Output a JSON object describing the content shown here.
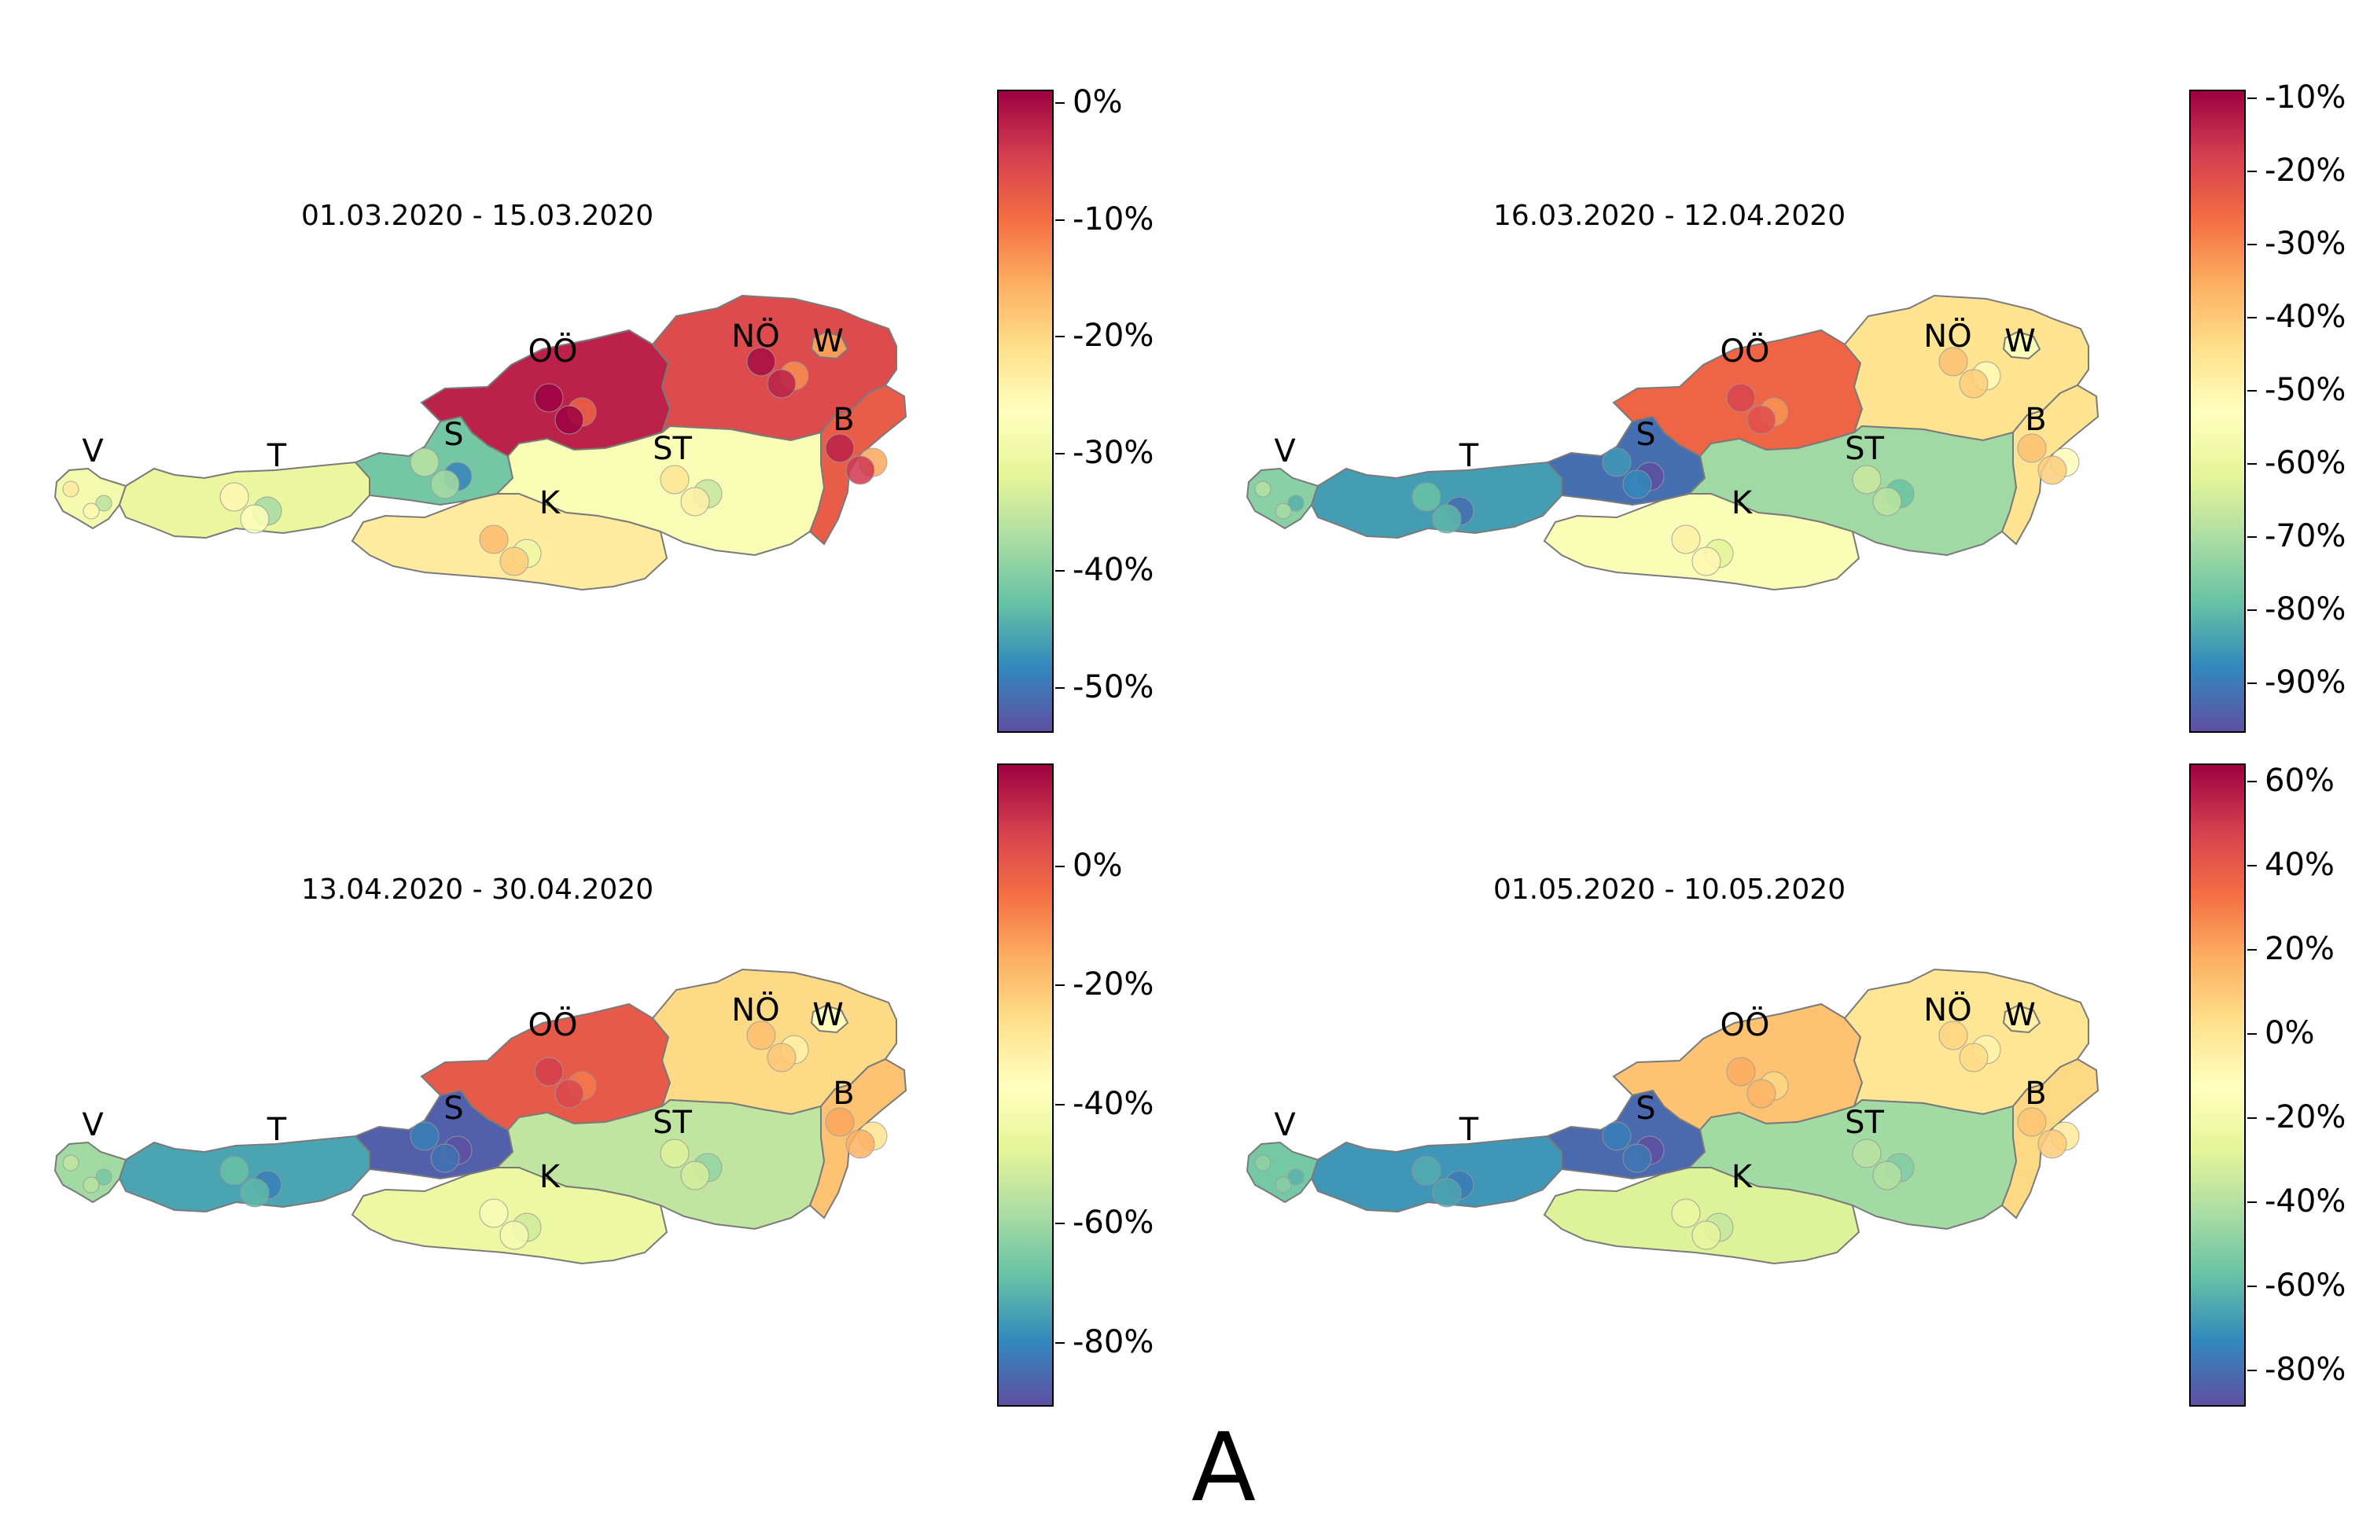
{
  "figure_label": "A",
  "colormap": {
    "name": "Spectral",
    "stops": [
      "#5e4fa2",
      "#3288bd",
      "#66c2a5",
      "#abdda4",
      "#e6f598",
      "#ffffbf",
      "#fee08b",
      "#fdae61",
      "#f46d43",
      "#d53e4f",
      "#9e0142"
    ]
  },
  "state_labels": [
    "V",
    "T",
    "S",
    "OÖ",
    "NÖ",
    "W",
    "B",
    "ST",
    "K"
  ],
  "panels": [
    {
      "title": "01.03.2020 - 15.03.2020",
      "colorbar_range": [
        -54,
        1
      ],
      "colorbar_ticks": [
        "0%",
        "-10%",
        "-20%",
        "-30%",
        "-40%",
        "-50%"
      ],
      "colorbar_tick_values": [
        0,
        -10,
        -20,
        -30,
        -40,
        -50
      ],
      "state_values": {
        "V": -29,
        "T": -31,
        "S": -42,
        "OÖ": -2,
        "NÖ": -6,
        "W": -14,
        "B": -8,
        "ST": -28,
        "K": -23
      }
    },
    {
      "title": "16.03.2020 - 12.04.2020",
      "colorbar_range": [
        -97,
        -9
      ],
      "colorbar_ticks": [
        "-10%",
        "-20%",
        "-30%",
        "-40%",
        "-50%",
        "-60%",
        "-70%",
        "-80%",
        "-90%"
      ],
      "colorbar_tick_values": [
        -10,
        -20,
        -30,
        -40,
        -50,
        -60,
        -70,
        -80,
        -90
      ],
      "state_values": {
        "V": -75,
        "T": -85,
        "S": -92,
        "OÖ": -25,
        "NÖ": -45,
        "W": -55,
        "B": -45,
        "ST": -72,
        "K": -55
      }
    },
    {
      "title": "13.04.2020 - 30.04.2020",
      "colorbar_range": [
        -91,
        17
      ],
      "colorbar_ticks": [
        "0%",
        "-20%",
        "-40%",
        "-60%",
        "-80%"
      ],
      "colorbar_tick_values": [
        0,
        -20,
        -40,
        -60,
        -80
      ],
      "state_values": {
        "V": -60,
        "T": -75,
        "S": -88,
        "OÖ": 0,
        "NÖ": -25,
        "W": -38,
        "B": -20,
        "ST": -55,
        "K": -45
      }
    },
    {
      "title": "01.05.2020 - 10.05.2020",
      "colorbar_range": [
        -89,
        64
      ],
      "colorbar_ticks": [
        "60%",
        "40%",
        "20%",
        "0%",
        "-20%",
        "-40%",
        "-60%",
        "-80%"
      ],
      "colorbar_tick_values": [
        60,
        40,
        20,
        0,
        -20,
        -40,
        -60,
        -80
      ],
      "state_values": {
        "V": -55,
        "T": -70,
        "S": -82,
        "OÖ": 12,
        "NÖ": 0,
        "W": -5,
        "B": 5,
        "ST": -45,
        "K": -30
      }
    }
  ]
}
